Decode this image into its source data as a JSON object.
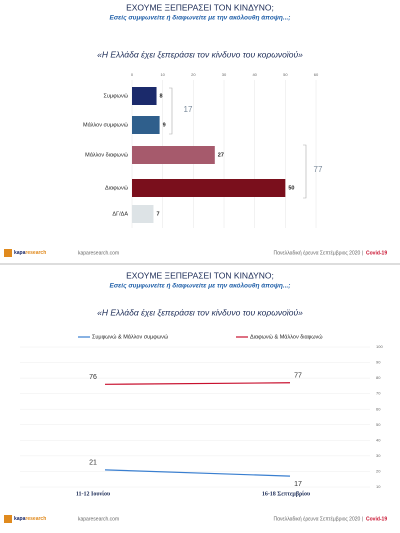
{
  "footer": {
    "logo_a": "kapa",
    "logo_b": "research",
    "site": "kaparesearch.com",
    "note": "Πανελλαδική έρευνα Σεπτέμβριος 2020 |",
    "tag": "Covid-19"
  },
  "chart_data": [
    {
      "type": "hbar",
      "title": "ΕΧΟΥΜΕ ΞΕΠΕΡΑΣΕΙ ΤΟΝ ΚΙΝΔΥΝΟ;",
      "subtitle": "Εσείς συμφωνείτε ή διαφωνείτε με την ακόλουθη άποψη...;",
      "caption": "«Η Ελλάδα έχει ξεπεράσει τον κίνδυνο του κορωνοϊού»",
      "categories": [
        "Συμφωνώ",
        "Μάλλον συμφωνώ",
        "Μάλλον διαφωνώ",
        "Διαφωνώ",
        "ΔΓ/ΔΑ"
      ],
      "values": [
        8,
        9,
        27,
        50,
        7
      ],
      "colors": [
        "#1b2a6b",
        "#2f5f8c",
        "#a65a6c",
        "#7a0f1c",
        "#dde3e6"
      ],
      "xlim": [
        0,
        60
      ],
      "xticks": [
        0,
        10,
        20,
        30,
        40,
        50,
        60
      ],
      "grid": true,
      "annotations": [
        17,
        77
      ]
    },
    {
      "type": "line",
      "title": "ΕΧΟΥΜΕ ΞΕΠΕΡΑΣΕΙ ΤΟΝ ΚΙΝΔΥΝΟ;",
      "subtitle": "Εσείς συμφωνείτε ή διαφωνείτε με την ακόλουθη άποψη...;",
      "caption": "«Η Ελλάδα έχει ξεπεράσει τον κίνδυνο του κορωνοϊού»",
      "categories": [
        "11-12 Ιουνίου",
        "16-18 Σεπτεμβρίου"
      ],
      "series": [
        {
          "name": "Συμφωνώ & Μάλλον συμφωνώ",
          "color": "#3a7fd0",
          "values": [
            21,
            17
          ]
        },
        {
          "name": "Διαφωνώ & Μάλλον διαφωνώ",
          "color": "#c8102e",
          "values": [
            76,
            77
          ]
        }
      ],
      "ylim": [
        10,
        100
      ],
      "yticks": [
        10,
        20,
        30,
        40,
        50,
        60,
        70,
        80,
        90,
        100
      ],
      "grid": true
    }
  ]
}
